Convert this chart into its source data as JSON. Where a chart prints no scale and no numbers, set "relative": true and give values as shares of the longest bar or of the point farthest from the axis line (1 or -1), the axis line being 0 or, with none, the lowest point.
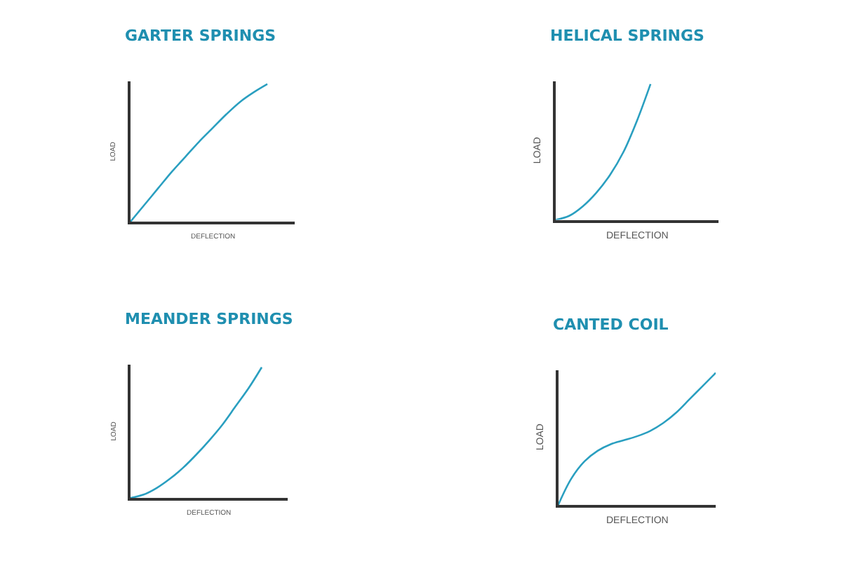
{
  "chart_data": [
    {
      "type": "line",
      "title": "GARTER SPRINGS",
      "xlabel": "DEFLECTION",
      "ylabel": "LOAD",
      "relative": true,
      "categories": [
        null,
        null,
        null,
        null,
        null,
        null,
        null,
        null,
        null,
        null,
        null,
        null,
        null
      ],
      "series": [
        {
          "color": "#2a9fc0",
          "values": [
            0,
            0.12,
            0.24,
            0.36,
            0.47,
            0.58,
            0.68,
            0.78,
            0.87,
            0.94,
            1.0,
            null,
            null
          ]
        }
      ],
      "marker": "none"
    },
    {
      "type": "line",
      "title": "HELICAL SPRINGS",
      "xlabel": "DEFLECTION",
      "ylabel": "LOAD",
      "relative": true,
      "categories": [
        null,
        null,
        null,
        null,
        null,
        null,
        null,
        null,
        null,
        null,
        null,
        null,
        null
      ],
      "series": [
        {
          "color": "#2a9fc0",
          "values": [
            0,
            0.03,
            0.1,
            0.2,
            0.33,
            0.5,
            0.73,
            1.0,
            null,
            null,
            null,
            null,
            null
          ]
        }
      ],
      "marker": "none"
    },
    {
      "type": "line",
      "title": "MEANDER SPRINGS",
      "xlabel": "DEFLECTION",
      "ylabel": "LOAD",
      "relative": true,
      "categories": [
        null,
        null,
        null,
        null,
        null,
        null,
        null,
        null,
        null,
        null,
        null,
        null,
        null
      ],
      "series": [
        {
          "color": "#2a9fc0",
          "values": [
            0,
            0.025,
            0.076,
            0.146,
            0.23,
            0.33,
            0.44,
            0.56,
            0.7,
            0.84,
            1.0,
            null,
            null
          ]
        }
      ],
      "marker": "none"
    },
    {
      "type": "line",
      "title": "CANTED COIL",
      "xlabel": "DEFLECTION",
      "ylabel": "LOAD",
      "relative": true,
      "categories": [
        null,
        null,
        null,
        null,
        null,
        null,
        null,
        null,
        null,
        null,
        null,
        null,
        null
      ],
      "series": [
        {
          "color": "#2a9fc0",
          "values": [
            0,
            0.2,
            0.33,
            0.41,
            0.46,
            0.49,
            0.52,
            0.56,
            0.62,
            0.7,
            0.8,
            0.9,
            1.0
          ]
        }
      ],
      "marker": "none"
    }
  ]
}
